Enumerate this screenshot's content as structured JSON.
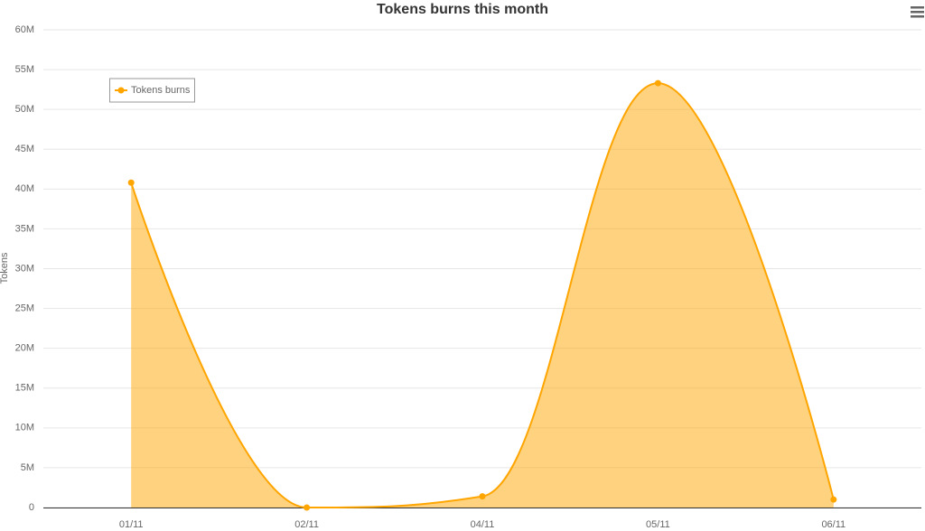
{
  "chart_data": {
    "type": "areaspline",
    "title": "Tokens burns this month",
    "y_label": "Tokens",
    "categories": [
      "01/11",
      "02/11",
      "04/11",
      "05/11",
      "06/11"
    ],
    "series": [
      {
        "name": "Tokens burns",
        "color": "#ffa500",
        "values": [
          40800000,
          0,
          1400000,
          53300000,
          1000000
        ]
      }
    ],
    "ylim": [
      0,
      60000000
    ],
    "yticks": [
      0,
      {
        "value": 5000000,
        "label": "5M"
      },
      {
        "value": 10000000,
        "label": "10M"
      },
      {
        "value": 15000000,
        "label": "15M"
      },
      {
        "value": 20000000,
        "label": "20M"
      },
      {
        "value": 25000000,
        "label": "25M"
      },
      {
        "value": 30000000,
        "label": "30M"
      },
      {
        "value": 35000000,
        "label": "35M"
      },
      {
        "value": 40000000,
        "label": "40M"
      },
      {
        "value": 45000000,
        "label": "45M"
      },
      {
        "value": 50000000,
        "label": "50M"
      },
      {
        "value": 55000000,
        "label": "55M"
      },
      {
        "value": 60000000,
        "label": "60M"
      }
    ],
    "grid": true,
    "legend": "upper-left"
  }
}
